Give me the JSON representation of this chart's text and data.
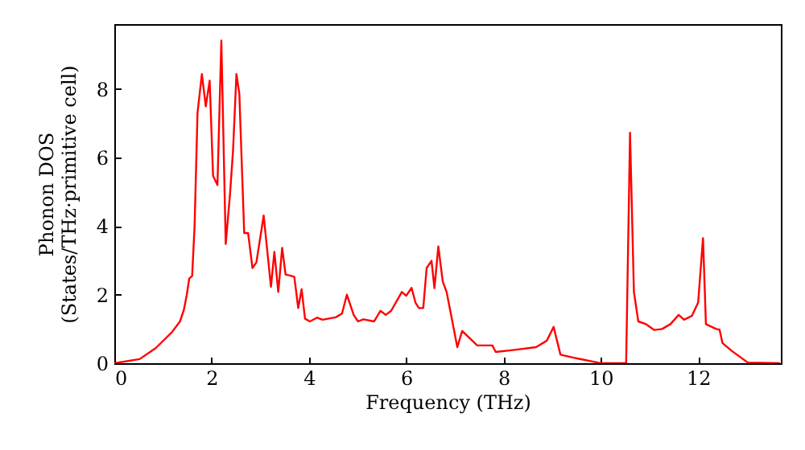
{
  "chart_data": {
    "type": "line",
    "xlabel": "Frequency (THz)",
    "ylabel": "Phonon DOS\n(States/THz·primitive cell)",
    "x": [
      0,
      0.52,
      0.85,
      1.18,
      1.35,
      1.43,
      1.49,
      1.54,
      1.6,
      1.65,
      1.71,
      1.8,
      1.88,
      1.96,
      2.03,
      2.12,
      2.2,
      2.29,
      2.38,
      2.44,
      2.51,
      2.57,
      2.67,
      2.75,
      2.84,
      2.92,
      3.07,
      3.22,
      3.29,
      3.37,
      3.45,
      3.52,
      3.64,
      3.7,
      3.78,
      3.85,
      3.92,
      4.02,
      4.17,
      4.28,
      4.55,
      4.68,
      4.78,
      4.92,
      5.01,
      5.12,
      5.34,
      5.47,
      5.58,
      5.69,
      5.91,
      6.0,
      6.11,
      6.19,
      6.26,
      6.35,
      6.42,
      6.52,
      6.58,
      6.66,
      6.75,
      6.83,
      7.05,
      7.15,
      7.46,
      7.77,
      7.84,
      8.23,
      8.67,
      8.89,
      9.03,
      9.17,
      9.44,
      9.55,
      9.83,
      9.99,
      10.52,
      10.6,
      10.68,
      10.77,
      10.93,
      11.1,
      11.26,
      11.43,
      11.6,
      11.71,
      11.87,
      12.0,
      12.1,
      12.16,
      12.37,
      12.44,
      12.5,
      12.69,
      13.02,
      13.68
    ],
    "series": [
      {
        "color": "#ff0000",
        "values": [
          0,
          0.12,
          0.44,
          0.9,
          1.22,
          1.56,
          2.0,
          2.47,
          2.55,
          4.0,
          7.3,
          8.44,
          7.5,
          8.25,
          5.47,
          5.2,
          9.42,
          3.48,
          4.97,
          6.2,
          8.44,
          7.86,
          3.8,
          3.8,
          2.78,
          2.94,
          4.31,
          2.23,
          3.25,
          2.08,
          3.37,
          2.59,
          2.55,
          2.52,
          1.61,
          2.16,
          1.3,
          1.22,
          1.33,
          1.27,
          1.34,
          1.45,
          2.0,
          1.41,
          1.22,
          1.28,
          1.22,
          1.53,
          1.41,
          1.53,
          2.08,
          1.97,
          2.2,
          1.77,
          1.61,
          1.61,
          2.78,
          2.99,
          2.19,
          3.41,
          2.39,
          2.08,
          0.47,
          0.94,
          0.52,
          0.52,
          0.33,
          0.39,
          0.47,
          0.66,
          1.06,
          0.25,
          0.16,
          0.13,
          0.05,
          0,
          0,
          6.73,
          2.08,
          1.22,
          1.14,
          0.97,
          1.0,
          1.14,
          1.41,
          1.27,
          1.38,
          1.77,
          3.65,
          1.14,
          1.0,
          0.98,
          0.59,
          0.36,
          0.02,
          0
        ]
      }
    ],
    "xlim": [
      0,
      13.7
    ],
    "ylim": [
      0,
      9.9
    ],
    "xticks": [
      0,
      2,
      4,
      6,
      8,
      10,
      12
    ],
    "yticks": [
      0,
      2,
      4,
      6,
      8
    ],
    "grid": false,
    "marker": "none",
    "line_style": "solid"
  }
}
